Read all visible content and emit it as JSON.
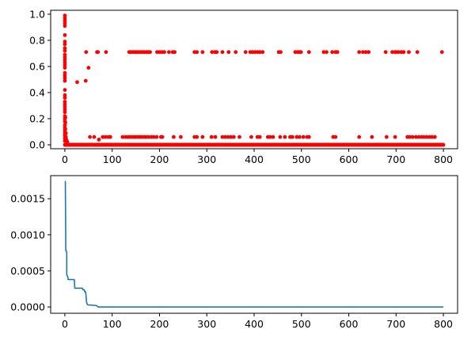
{
  "chart_data": [
    {
      "type": "scatter",
      "color": "#ff0000",
      "xlim": [
        -30,
        830
      ],
      "ylim": [
        -0.03,
        1.03
      ],
      "xticks": [
        {
          "value": 0,
          "label": "0"
        },
        {
          "value": 100,
          "label": "100"
        },
        {
          "value": 200,
          "label": "200"
        },
        {
          "value": 300,
          "label": "300"
        },
        {
          "value": 400,
          "label": "400"
        },
        {
          "value": 500,
          "label": "500"
        },
        {
          "value": 600,
          "label": "600"
        },
        {
          "value": 700,
          "label": "700"
        },
        {
          "value": 800,
          "label": "800"
        }
      ],
      "yticks": [
        {
          "value": 0.0,
          "label": "0.0"
        },
        {
          "value": 0.2,
          "label": "0.2"
        },
        {
          "value": 0.4,
          "label": "0.4"
        },
        {
          "value": 0.6,
          "label": "0.6"
        },
        {
          "value": 0.8,
          "label": "0.8"
        },
        {
          "value": 1.0,
          "label": "1.0"
        }
      ],
      "points": [
        [
          0,
          0.99
        ],
        [
          0,
          0.97
        ],
        [
          0,
          0.95
        ],
        [
          0,
          0.93
        ],
        [
          0,
          0.91
        ],
        [
          0,
          0.84
        ],
        [
          0,
          0.79
        ],
        [
          0,
          0.77
        ],
        [
          0,
          0.74
        ],
        [
          0,
          0.72
        ],
        [
          0,
          0.69
        ],
        [
          0,
          0.67
        ],
        [
          0,
          0.65
        ],
        [
          0,
          0.63
        ],
        [
          0,
          0.61
        ],
        [
          0,
          0.59
        ],
        [
          0,
          0.55
        ],
        [
          0,
          0.53
        ],
        [
          0,
          0.51
        ],
        [
          0,
          0.49
        ],
        [
          0,
          0.42
        ],
        [
          0,
          0.38
        ],
        [
          0,
          0.36
        ],
        [
          0,
          0.33
        ],
        [
          0,
          0.31
        ],
        [
          0,
          0.29
        ],
        [
          0,
          0.27
        ],
        [
          0,
          0.25
        ],
        [
          0,
          0.22
        ],
        [
          0,
          0.2
        ],
        [
          0,
          0.18
        ],
        [
          0,
          0.15
        ],
        [
          0,
          0.13
        ],
        [
          0,
          0.11
        ],
        [
          0,
          0.09
        ],
        [
          0,
          0.07
        ],
        [
          0,
          0.05
        ],
        [
          0,
          0.03
        ],
        [
          1,
          0.21
        ],
        [
          1,
          0.17
        ],
        [
          1,
          0.12
        ],
        [
          1,
          0.08
        ],
        [
          1,
          0.05
        ],
        [
          2,
          0.06
        ],
        [
          2,
          0.09
        ],
        [
          3,
          0.04
        ],
        [
          4,
          0.03
        ],
        [
          5,
          0.02
        ],
        [
          26,
          0.48
        ],
        [
          44,
          0.49
        ],
        [
          45,
          0.71
        ],
        [
          50,
          0.59
        ],
        [
          53,
          0.06
        ],
        [
          62,
          0.06
        ],
        [
          68,
          0.71
        ],
        [
          70,
          0.71
        ],
        [
          72,
          0.04
        ],
        [
          87,
          0.71
        ],
        [
          80,
          0.06
        ],
        [
          86,
          0.06
        ],
        [
          92,
          0.06
        ],
        [
          96,
          0.06
        ],
        [
          136,
          0.71
        ],
        [
          140,
          0.71
        ],
        [
          144,
          0.71
        ],
        [
          148,
          0.71
        ],
        [
          152,
          0.71
        ],
        [
          156,
          0.71
        ],
        [
          160,
          0.71
        ],
        [
          164,
          0.71
        ],
        [
          168,
          0.71
        ],
        [
          172,
          0.71
        ],
        [
          176,
          0.71
        ],
        [
          180,
          0.71
        ],
        [
          195,
          0.71
        ],
        [
          200,
          0.71
        ],
        [
          205,
          0.71
        ],
        [
          210,
          0.71
        ],
        [
          220,
          0.71
        ],
        [
          228,
          0.71
        ],
        [
          232,
          0.71
        ],
        [
          274,
          0.71
        ],
        [
          279,
          0.71
        ],
        [
          291,
          0.71
        ],
        [
          311,
          0.71
        ],
        [
          317,
          0.71
        ],
        [
          321,
          0.71
        ],
        [
          333,
          0.71
        ],
        [
          346,
          0.71
        ],
        [
          361,
          0.71
        ],
        [
          382,
          0.71
        ],
        [
          392,
          0.71
        ],
        [
          397,
          0.71
        ],
        [
          402,
          0.71
        ],
        [
          407,
          0.71
        ],
        [
          412,
          0.71
        ],
        [
          418,
          0.71
        ],
        [
          452,
          0.71
        ],
        [
          456,
          0.71
        ],
        [
          487,
          0.71
        ],
        [
          492,
          0.71
        ],
        [
          495,
          0.71
        ],
        [
          499,
          0.71
        ],
        [
          516,
          0.71
        ],
        [
          547,
          0.71
        ],
        [
          553,
          0.71
        ],
        [
          565,
          0.71
        ],
        [
          572,
          0.71
        ],
        [
          576,
          0.71
        ],
        [
          622,
          0.71
        ],
        [
          630,
          0.71
        ],
        [
          636,
          0.71
        ],
        [
          642,
          0.71
        ],
        [
          678,
          0.71
        ],
        [
          692,
          0.71
        ],
        [
          698,
          0.71
        ],
        [
          700,
          0.71
        ],
        [
          705,
          0.71
        ],
        [
          711,
          0.71
        ],
        [
          716,
          0.71
        ],
        [
          727,
          0.71
        ],
        [
          745,
          0.71
        ],
        [
          797,
          0.71
        ],
        [
          122,
          0.06
        ],
        [
          128,
          0.06
        ],
        [
          133,
          0.06
        ],
        [
          137,
          0.06
        ],
        [
          141,
          0.06
        ],
        [
          146,
          0.06
        ],
        [
          150,
          0.06
        ],
        [
          155,
          0.06
        ],
        [
          159,
          0.06
        ],
        [
          163,
          0.06
        ],
        [
          168,
          0.06
        ],
        [
          172,
          0.06
        ],
        [
          177,
          0.06
        ],
        [
          183,
          0.06
        ],
        [
          188,
          0.06
        ],
        [
          194,
          0.06
        ],
        [
          203,
          0.06
        ],
        [
          206,
          0.06
        ],
        [
          230,
          0.06
        ],
        [
          245,
          0.06
        ],
        [
          274,
          0.06
        ],
        [
          279,
          0.06
        ],
        [
          291,
          0.06
        ],
        [
          310,
          0.06
        ],
        [
          318,
          0.06
        ],
        [
          333,
          0.06
        ],
        [
          339,
          0.06
        ],
        [
          345,
          0.06
        ],
        [
          351,
          0.06
        ],
        [
          357,
          0.06
        ],
        [
          369,
          0.06
        ],
        [
          394,
          0.06
        ],
        [
          407,
          0.06
        ],
        [
          412,
          0.06
        ],
        [
          429,
          0.06
        ],
        [
          434,
          0.06
        ],
        [
          440,
          0.06
        ],
        [
          455,
          0.06
        ],
        [
          465,
          0.06
        ],
        [
          476,
          0.06
        ],
        [
          481,
          0.06
        ],
        [
          490,
          0.06
        ],
        [
          496,
          0.06
        ],
        [
          504,
          0.06
        ],
        [
          512,
          0.06
        ],
        [
          516,
          0.06
        ],
        [
          567,
          0.06
        ],
        [
          572,
          0.06
        ],
        [
          622,
          0.06
        ],
        [
          649,
          0.06
        ],
        [
          680,
          0.06
        ],
        [
          698,
          0.06
        ],
        [
          724,
          0.06
        ],
        [
          729,
          0.06
        ],
        [
          735,
          0.06
        ],
        [
          742,
          0.06
        ],
        [
          748,
          0.06
        ],
        [
          754,
          0.06
        ],
        [
          759,
          0.06
        ],
        [
          765,
          0.06
        ],
        [
          771,
          0.06
        ],
        [
          776,
          0.06
        ],
        [
          782,
          0.06
        ]
      ],
      "baseline": {
        "y": 0.0,
        "x_from": 0,
        "x_to": 800,
        "step": 2
      }
    },
    {
      "type": "line",
      "color": "#1f77b4",
      "xlim": [
        -30,
        830
      ],
      "ylim": [
        -8.7e-05,
        0.00182
      ],
      "xticks": [
        {
          "value": 0,
          "label": "0"
        },
        {
          "value": 100,
          "label": "100"
        },
        {
          "value": 200,
          "label": "200"
        },
        {
          "value": 300,
          "label": "300"
        },
        {
          "value": 400,
          "label": "400"
        },
        {
          "value": 500,
          "label": "500"
        },
        {
          "value": 600,
          "label": "600"
        },
        {
          "value": 700,
          "label": "700"
        },
        {
          "value": 800,
          "label": "800"
        }
      ],
      "yticks": [
        {
          "value": 0.0,
          "label": "0.0000"
        },
        {
          "value": 0.0005,
          "label": "0.0005"
        },
        {
          "value": 0.001,
          "label": "0.0010"
        },
        {
          "value": 0.0015,
          "label": "0.0015"
        }
      ],
      "points": [
        [
          0,
          0.00174
        ],
        [
          1,
          0.00174
        ],
        [
          2,
          0.00078
        ],
        [
          3,
          0.00078
        ],
        [
          4,
          0.00076
        ],
        [
          4,
          0.00045
        ],
        [
          6,
          0.00042
        ],
        [
          7,
          0.00038
        ],
        [
          20,
          0.00038
        ],
        [
          21,
          0.00026
        ],
        [
          37,
          0.00026
        ],
        [
          38,
          0.00024
        ],
        [
          41,
          0.00024
        ],
        [
          42,
          0.00021
        ],
        [
          44,
          0.00021
        ],
        [
          46,
          6e-05
        ],
        [
          48,
          3e-05
        ],
        [
          67,
          2e-05
        ],
        [
          70,
          0.0
        ],
        [
          800,
          0.0
        ]
      ]
    }
  ]
}
